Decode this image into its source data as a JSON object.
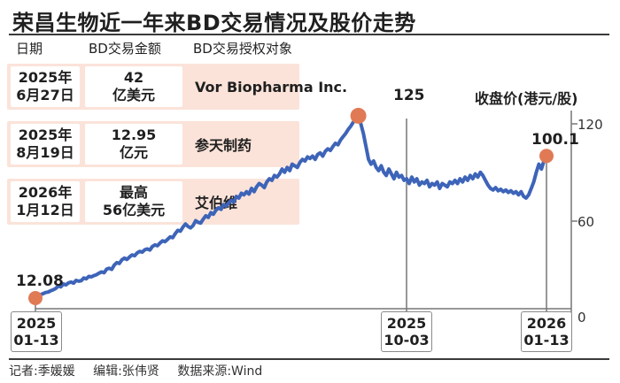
{
  "title": "荣昌生物近一年来BD交易情况及股价走势",
  "table_headers": {
    "date": "日期",
    "amount": "BD交易金额",
    "party": "BD交易授权对象"
  },
  "deals": [
    {
      "date_line1": "2025年",
      "date_line2": "6月27日",
      "amount_line1": "42",
      "amount_line2": "亿美元",
      "party": "Vor Biopharma Inc."
    },
    {
      "date_line1": "2025年",
      "date_line2": "8月19日",
      "amount_line1": "12.95",
      "amount_line2": "亿元",
      "party": "参天制药"
    },
    {
      "date_line1": "2026年",
      "date_line2": "1月12日",
      "amount_line1": "最高",
      "amount_line2": "56亿美元",
      "party": "艾伯维"
    }
  ],
  "footer": {
    "reporter": "记者:季媛媛",
    "editor": "编辑:张伟贤",
    "source": "数据来源:Wind"
  },
  "colors": {
    "line": "#3d64b8",
    "marker": "#e07a55",
    "deal_bg": "#fbe3d9",
    "axis": "#777777"
  },
  "chart_data": {
    "type": "line",
    "ylabel": "收盘价(港元/股)",
    "ylim": [
      0,
      120
    ],
    "yticks": [
      "120",
      "60",
      "0"
    ],
    "grid": false,
    "series": [
      {
        "values": [
          12.08,
          13.5,
          14.2,
          14.8,
          15.5,
          15.8,
          16.6,
          17.2,
          18.0,
          19.5,
          19.0,
          20.8,
          20.2,
          21.5,
          22.0,
          21.3,
          23.0,
          22.5,
          22.8,
          24.5,
          24.0,
          25.5,
          25.2,
          26.0,
          26.5,
          27.5,
          28.3,
          27.8,
          30.0,
          30.5,
          29.8,
          32.5,
          34.0,
          33.5,
          35.8,
          36.8,
          36.0,
          37.5,
          38.8,
          38.3,
          40.0,
          41.0,
          40.5,
          42.0,
          42.5,
          41.8,
          44.0,
          45.0,
          44.5,
          46.2,
          47.5,
          47.0,
          48.5,
          50.0,
          49.5,
          52.0,
          54.0,
          53.5,
          56.0,
          58.0,
          56.5,
          55.5,
          57.0,
          60.0,
          59.0,
          58.5,
          61.0,
          63.0,
          62.0,
          65.0,
          64.0,
          66.5,
          68.0,
          67.0,
          70.0,
          69.0,
          71.0,
          72.5,
          71.5,
          75.0,
          74.0,
          77.0,
          76.0,
          78.0,
          76.5,
          80.0,
          78.0,
          81.0,
          83.0,
          82.0,
          80.5,
          84.0,
          86.0,
          85.0,
          88.0,
          87.0,
          89.0,
          92.0,
          90.0,
          93.0,
          91.0,
          95.0,
          94.0,
          93.0,
          96.0,
          98.0,
          97.0,
          99.5,
          98.5,
          100.0,
          98.0,
          101.0,
          102.0,
          100.0,
          103.0,
          104.5,
          103.5,
          106.0,
          108.0,
          107.0,
          110.0,
          112.0,
          114.0,
          116.5,
          118.5,
          121.0,
          123.0,
          125.0,
          120.0,
          114.0,
          106.0,
          98.0,
          95.0,
          97.0,
          93.0,
          91.0,
          94.0,
          90.0,
          88.0,
          92.0,
          89.0,
          86.0,
          90.0,
          87.0,
          88.0,
          85.0,
          86.0,
          83.0,
          87.0,
          84.0,
          86.0,
          82.0,
          84.0,
          83.0,
          85.0,
          81.0,
          83.0,
          82.0,
          84.0,
          80.0,
          83.0,
          82.0,
          81.0,
          84.0,
          83.0,
          85.0,
          83.0,
          86.0,
          84.0,
          87.0,
          85.0,
          88.0,
          86.0,
          89.0,
          87.0,
          90.0,
          88.0,
          85.0,
          82.0,
          80.0,
          79.0,
          80.5,
          78.5,
          79.5,
          78.0,
          79.0,
          77.5,
          78.5,
          77.0,
          78.0,
          76.0,
          78.0,
          75.0,
          74.0,
          76.0,
          80.0,
          84.0,
          90.0,
          95.0,
          92.0,
          97.0,
          100.1
        ]
      }
    ],
    "highlights": [
      {
        "date_line1": "2025",
        "date_line2": "01-13",
        "value": "12.08"
      },
      {
        "date_line1": "2025",
        "date_line2": "10-03",
        "value": "125"
      },
      {
        "date_line1": "2026",
        "date_line2": "01-13",
        "value": "100.1"
      }
    ]
  }
}
